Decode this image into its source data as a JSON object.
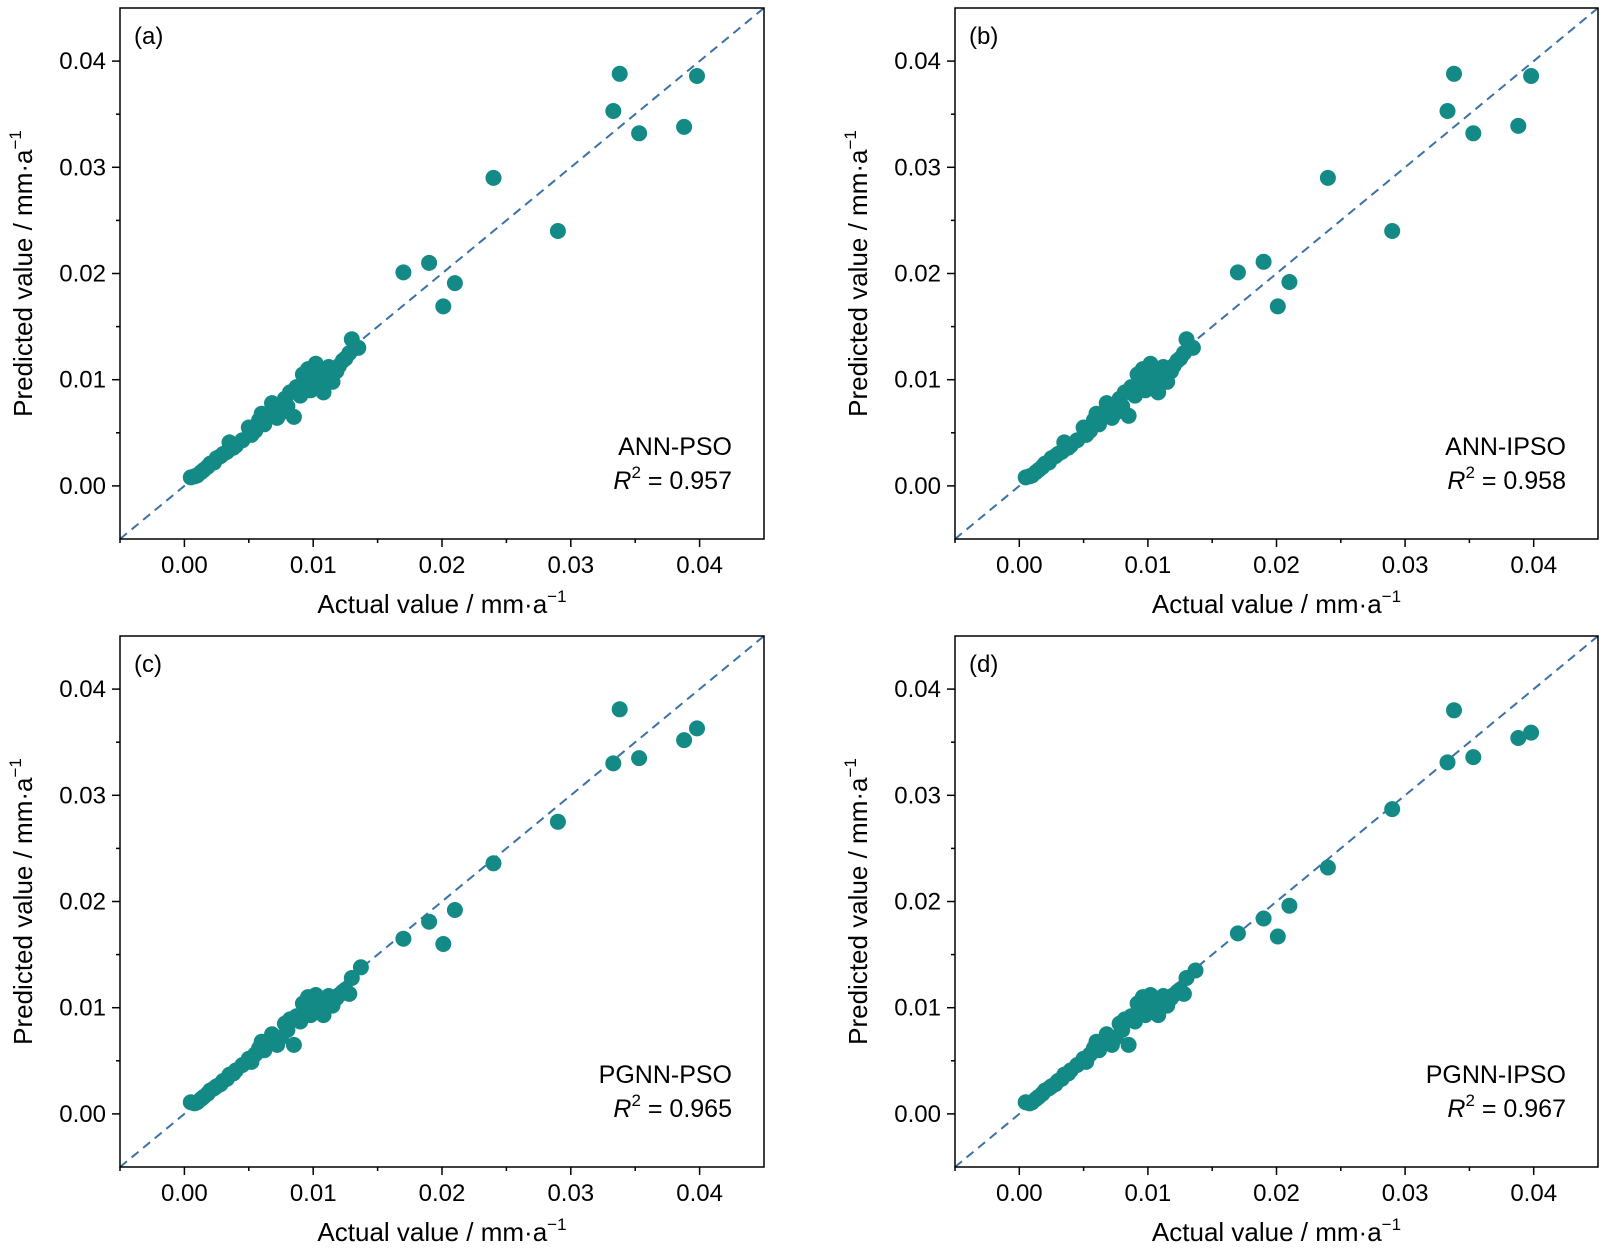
{
  "figure": {
    "point_color": "#138a85",
    "line_color": "#3a72a8",
    "panels": [
      {
        "label": "(a)",
        "model": "ANN-PSO",
        "r2_symbol": "R",
        "r2_exp": "2",
        "r2_value": " = 0.957",
        "xlabel": "Actual value / mm·a",
        "ylabel": "Predicted value / mm·a",
        "unit_exp": "−1"
      },
      {
        "label": "(b)",
        "model": "ANN-IPSO",
        "r2_symbol": "R",
        "r2_exp": "2",
        "r2_value": " = 0.958",
        "xlabel": "Actual value / mm·a",
        "ylabel": "Predicted value / mm·a",
        "unit_exp": "−1"
      },
      {
        "label": "(c)",
        "model": "PGNN-PSO",
        "r2_symbol": "R",
        "r2_exp": "2",
        "r2_value": " = 0.965",
        "xlabel": "Actual value / mm·a",
        "ylabel": "Predicted value / mm·a",
        "unit_exp": "−1"
      },
      {
        "label": "(d)",
        "model": "PGNN-IPSO",
        "r2_symbol": "R",
        "r2_exp": "2",
        "r2_value": " = 0.967",
        "xlabel": "Actual value / mm·a",
        "ylabel": "Predicted value / mm·a",
        "unit_exp": "−1"
      }
    ]
  },
  "chart_data": [
    {
      "type": "scatter",
      "panel": "(a)",
      "xlim": [
        -0.005,
        0.045
      ],
      "ylim": [
        -0.005,
        0.045
      ],
      "xticks": [
        "0.00",
        "0.01",
        "0.02",
        "0.03",
        "0.04"
      ],
      "yticks": [
        "0.00",
        "0.01",
        "0.02",
        "0.03",
        "0.04"
      ],
      "reference_line": "y = x (dashed)",
      "points": [
        [
          0.0005,
          0.0008
        ],
        [
          0.0008,
          0.0009
        ],
        [
          0.001,
          0.001
        ],
        [
          0.0013,
          0.0013
        ],
        [
          0.0015,
          0.0015
        ],
        [
          0.0018,
          0.0018
        ],
        [
          0.002,
          0.0021
        ],
        [
          0.0023,
          0.0022
        ],
        [
          0.0025,
          0.0026
        ],
        [
          0.0028,
          0.0028
        ],
        [
          0.003,
          0.003
        ],
        [
          0.0033,
          0.0032
        ],
        [
          0.0035,
          0.0041
        ],
        [
          0.0038,
          0.0036
        ],
        [
          0.004,
          0.0038
        ],
        [
          0.0045,
          0.0043
        ],
        [
          0.005,
          0.0055
        ],
        [
          0.0052,
          0.0048
        ],
        [
          0.0055,
          0.0052
        ],
        [
          0.0058,
          0.0062
        ],
        [
          0.006,
          0.0068
        ],
        [
          0.0062,
          0.0058
        ],
        [
          0.0065,
          0.0065
        ],
        [
          0.0068,
          0.0078
        ],
        [
          0.007,
          0.0071
        ],
        [
          0.0072,
          0.0064
        ],
        [
          0.0075,
          0.0069
        ],
        [
          0.0078,
          0.0082
        ],
        [
          0.008,
          0.0075
        ],
        [
          0.0082,
          0.0088
        ],
        [
          0.0085,
          0.0065
        ],
        [
          0.0087,
          0.0093
        ],
        [
          0.009,
          0.0085
        ],
        [
          0.0092,
          0.0105
        ],
        [
          0.0094,
          0.0096
        ],
        [
          0.0096,
          0.011
        ],
        [
          0.0098,
          0.009
        ],
        [
          0.01,
          0.01
        ],
        [
          0.0102,
          0.0115
        ],
        [
          0.0104,
          0.0095
        ],
        [
          0.0106,
          0.0107
        ],
        [
          0.0108,
          0.0088
        ],
        [
          0.011,
          0.0103
        ],
        [
          0.0112,
          0.0112
        ],
        [
          0.0115,
          0.0098
        ],
        [
          0.0118,
          0.0108
        ],
        [
          0.012,
          0.0113
        ],
        [
          0.0123,
          0.0118
        ],
        [
          0.0125,
          0.012
        ],
        [
          0.0128,
          0.0125
        ],
        [
          0.013,
          0.0138
        ],
        [
          0.0135,
          0.013
        ],
        [
          0.017,
          0.0201
        ],
        [
          0.019,
          0.021
        ],
        [
          0.0201,
          0.0169
        ],
        [
          0.021,
          0.0191
        ],
        [
          0.024,
          0.029
        ],
        [
          0.029,
          0.024
        ],
        [
          0.0333,
          0.0353
        ],
        [
          0.0338,
          0.0388
        ],
        [
          0.0353,
          0.0332
        ],
        [
          0.0388,
          0.0338
        ],
        [
          0.0398,
          0.0386
        ]
      ]
    },
    {
      "type": "scatter",
      "panel": "(b)",
      "xlim": [
        -0.005,
        0.045
      ],
      "ylim": [
        -0.005,
        0.045
      ],
      "xticks": [
        "0.00",
        "0.01",
        "0.02",
        "0.03",
        "0.04"
      ],
      "yticks": [
        "0.00",
        "0.01",
        "0.02",
        "0.03",
        "0.04"
      ],
      "reference_line": "y = x (dashed)",
      "points": [
        [
          0.0005,
          0.0008
        ],
        [
          0.0008,
          0.0009
        ],
        [
          0.001,
          0.001
        ],
        [
          0.0013,
          0.0013
        ],
        [
          0.0015,
          0.0015
        ],
        [
          0.0018,
          0.0018
        ],
        [
          0.002,
          0.0021
        ],
        [
          0.0023,
          0.0022
        ],
        [
          0.0025,
          0.0026
        ],
        [
          0.0028,
          0.0028
        ],
        [
          0.003,
          0.003
        ],
        [
          0.0033,
          0.0032
        ],
        [
          0.0035,
          0.0041
        ],
        [
          0.0038,
          0.0036
        ],
        [
          0.004,
          0.0038
        ],
        [
          0.0045,
          0.0043
        ],
        [
          0.005,
          0.0055
        ],
        [
          0.0052,
          0.0048
        ],
        [
          0.0055,
          0.0052
        ],
        [
          0.0058,
          0.0062
        ],
        [
          0.006,
          0.0068
        ],
        [
          0.0062,
          0.0058
        ],
        [
          0.0065,
          0.0065
        ],
        [
          0.0068,
          0.0078
        ],
        [
          0.007,
          0.0071
        ],
        [
          0.0072,
          0.0064
        ],
        [
          0.0075,
          0.0069
        ],
        [
          0.0078,
          0.0082
        ],
        [
          0.008,
          0.0075
        ],
        [
          0.0082,
          0.0088
        ],
        [
          0.0085,
          0.0066
        ],
        [
          0.0087,
          0.0093
        ],
        [
          0.009,
          0.0085
        ],
        [
          0.0092,
          0.0105
        ],
        [
          0.0094,
          0.0096
        ],
        [
          0.0096,
          0.011
        ],
        [
          0.0098,
          0.009
        ],
        [
          0.01,
          0.01
        ],
        [
          0.0102,
          0.0115
        ],
        [
          0.0104,
          0.0095
        ],
        [
          0.0106,
          0.0107
        ],
        [
          0.0108,
          0.0088
        ],
        [
          0.011,
          0.0103
        ],
        [
          0.0112,
          0.0112
        ],
        [
          0.0115,
          0.0098
        ],
        [
          0.0118,
          0.0108
        ],
        [
          0.012,
          0.0113
        ],
        [
          0.0123,
          0.0118
        ],
        [
          0.0125,
          0.012
        ],
        [
          0.0128,
          0.0125
        ],
        [
          0.013,
          0.0138
        ],
        [
          0.0135,
          0.013
        ],
        [
          0.017,
          0.0201
        ],
        [
          0.019,
          0.0211
        ],
        [
          0.0201,
          0.0169
        ],
        [
          0.021,
          0.0192
        ],
        [
          0.024,
          0.029
        ],
        [
          0.029,
          0.024
        ],
        [
          0.0333,
          0.0353
        ],
        [
          0.0338,
          0.0388
        ],
        [
          0.0353,
          0.0332
        ],
        [
          0.0388,
          0.0339
        ],
        [
          0.0398,
          0.0386
        ]
      ]
    },
    {
      "type": "scatter",
      "panel": "(c)",
      "xlim": [
        -0.005,
        0.045
      ],
      "ylim": [
        -0.005,
        0.045
      ],
      "xticks": [
        "0.00",
        "0.01",
        "0.02",
        "0.03",
        "0.04"
      ],
      "yticks": [
        "0.00",
        "0.01",
        "0.02",
        "0.03",
        "0.04"
      ],
      "reference_line": "y = x (dashed)",
      "points": [
        [
          0.0005,
          0.0011
        ],
        [
          0.0008,
          0.001
        ],
        [
          0.001,
          0.0011
        ],
        [
          0.0013,
          0.0014
        ],
        [
          0.0015,
          0.0016
        ],
        [
          0.0018,
          0.0019
        ],
        [
          0.002,
          0.0022
        ],
        [
          0.0023,
          0.0024
        ],
        [
          0.0025,
          0.0026
        ],
        [
          0.0028,
          0.0028
        ],
        [
          0.003,
          0.0031
        ],
        [
          0.0033,
          0.0033
        ],
        [
          0.0035,
          0.0037
        ],
        [
          0.0038,
          0.0038
        ],
        [
          0.004,
          0.0041
        ],
        [
          0.0045,
          0.0046
        ],
        [
          0.005,
          0.0052
        ],
        [
          0.0052,
          0.0049
        ],
        [
          0.0055,
          0.0056
        ],
        [
          0.0058,
          0.0062
        ],
        [
          0.006,
          0.0068
        ],
        [
          0.0062,
          0.006
        ],
        [
          0.0065,
          0.0066
        ],
        [
          0.0068,
          0.0075
        ],
        [
          0.007,
          0.0071
        ],
        [
          0.0072,
          0.0065
        ],
        [
          0.0075,
          0.0072
        ],
        [
          0.0078,
          0.0085
        ],
        [
          0.008,
          0.0079
        ],
        [
          0.0082,
          0.0089
        ],
        [
          0.0085,
          0.0065
        ],
        [
          0.0087,
          0.0092
        ],
        [
          0.009,
          0.0087
        ],
        [
          0.0092,
          0.0104
        ],
        [
          0.0094,
          0.0097
        ],
        [
          0.0096,
          0.011
        ],
        [
          0.0098,
          0.0093
        ],
        [
          0.01,
          0.0101
        ],
        [
          0.0102,
          0.0112
        ],
        [
          0.0104,
          0.0097
        ],
        [
          0.0106,
          0.0106
        ],
        [
          0.0108,
          0.0093
        ],
        [
          0.011,
          0.0104
        ],
        [
          0.0112,
          0.0111
        ],
        [
          0.0115,
          0.0102
        ],
        [
          0.0118,
          0.0109
        ],
        [
          0.012,
          0.0112
        ],
        [
          0.0123,
          0.0115
        ],
        [
          0.0125,
          0.0117
        ],
        [
          0.0128,
          0.0113
        ],
        [
          0.013,
          0.0128
        ],
        [
          0.0137,
          0.0138
        ],
        [
          0.017,
          0.0165
        ],
        [
          0.019,
          0.0181
        ],
        [
          0.0201,
          0.016
        ],
        [
          0.021,
          0.0192
        ],
        [
          0.024,
          0.0236
        ],
        [
          0.029,
          0.0275
        ],
        [
          0.0333,
          0.033
        ],
        [
          0.0338,
          0.0381
        ],
        [
          0.0353,
          0.0335
        ],
        [
          0.0388,
          0.0352
        ],
        [
          0.0398,
          0.0363
        ]
      ]
    },
    {
      "type": "scatter",
      "panel": "(d)",
      "xlim": [
        -0.005,
        0.045
      ],
      "ylim": [
        -0.005,
        0.045
      ],
      "xticks": [
        "0.00",
        "0.01",
        "0.02",
        "0.03",
        "0.04"
      ],
      "yticks": [
        "0.00",
        "0.01",
        "0.02",
        "0.03",
        "0.04"
      ],
      "reference_line": "y = x (dashed)",
      "points": [
        [
          0.0005,
          0.0011
        ],
        [
          0.0008,
          0.001
        ],
        [
          0.001,
          0.0011
        ],
        [
          0.0013,
          0.0014
        ],
        [
          0.0015,
          0.0016
        ],
        [
          0.0018,
          0.0019
        ],
        [
          0.002,
          0.0022
        ],
        [
          0.0023,
          0.0024
        ],
        [
          0.0025,
          0.0026
        ],
        [
          0.0028,
          0.0028
        ],
        [
          0.003,
          0.0031
        ],
        [
          0.0033,
          0.0033
        ],
        [
          0.0035,
          0.0037
        ],
        [
          0.0038,
          0.0038
        ],
        [
          0.004,
          0.0041
        ],
        [
          0.0045,
          0.0046
        ],
        [
          0.005,
          0.0052
        ],
        [
          0.0052,
          0.0049
        ],
        [
          0.0055,
          0.0056
        ],
        [
          0.0058,
          0.0062
        ],
        [
          0.006,
          0.0068
        ],
        [
          0.0062,
          0.006
        ],
        [
          0.0065,
          0.0066
        ],
        [
          0.0068,
          0.0075
        ],
        [
          0.007,
          0.0071
        ],
        [
          0.0072,
          0.0065
        ],
        [
          0.0075,
          0.0072
        ],
        [
          0.0078,
          0.0085
        ],
        [
          0.008,
          0.0079
        ],
        [
          0.0082,
          0.0089
        ],
        [
          0.0085,
          0.0065
        ],
        [
          0.0087,
          0.0092
        ],
        [
          0.009,
          0.0087
        ],
        [
          0.0092,
          0.0104
        ],
        [
          0.0094,
          0.0097
        ],
        [
          0.0096,
          0.011
        ],
        [
          0.0098,
          0.0093
        ],
        [
          0.01,
          0.0101
        ],
        [
          0.0102,
          0.0112
        ],
        [
          0.0104,
          0.0097
        ],
        [
          0.0106,
          0.0106
        ],
        [
          0.0108,
          0.0093
        ],
        [
          0.011,
          0.0104
        ],
        [
          0.0112,
          0.0111
        ],
        [
          0.0115,
          0.0102
        ],
        [
          0.0118,
          0.0109
        ],
        [
          0.012,
          0.0112
        ],
        [
          0.0123,
          0.0115
        ],
        [
          0.0125,
          0.0117
        ],
        [
          0.0128,
          0.0113
        ],
        [
          0.013,
          0.0128
        ],
        [
          0.0137,
          0.0135
        ],
        [
          0.017,
          0.017
        ],
        [
          0.019,
          0.0184
        ],
        [
          0.0201,
          0.0167
        ],
        [
          0.021,
          0.0196
        ],
        [
          0.024,
          0.0232
        ],
        [
          0.029,
          0.0287
        ],
        [
          0.0333,
          0.0331
        ],
        [
          0.0338,
          0.038
        ],
        [
          0.0353,
          0.0336
        ],
        [
          0.0388,
          0.0354
        ],
        [
          0.0398,
          0.0359
        ]
      ]
    }
  ]
}
